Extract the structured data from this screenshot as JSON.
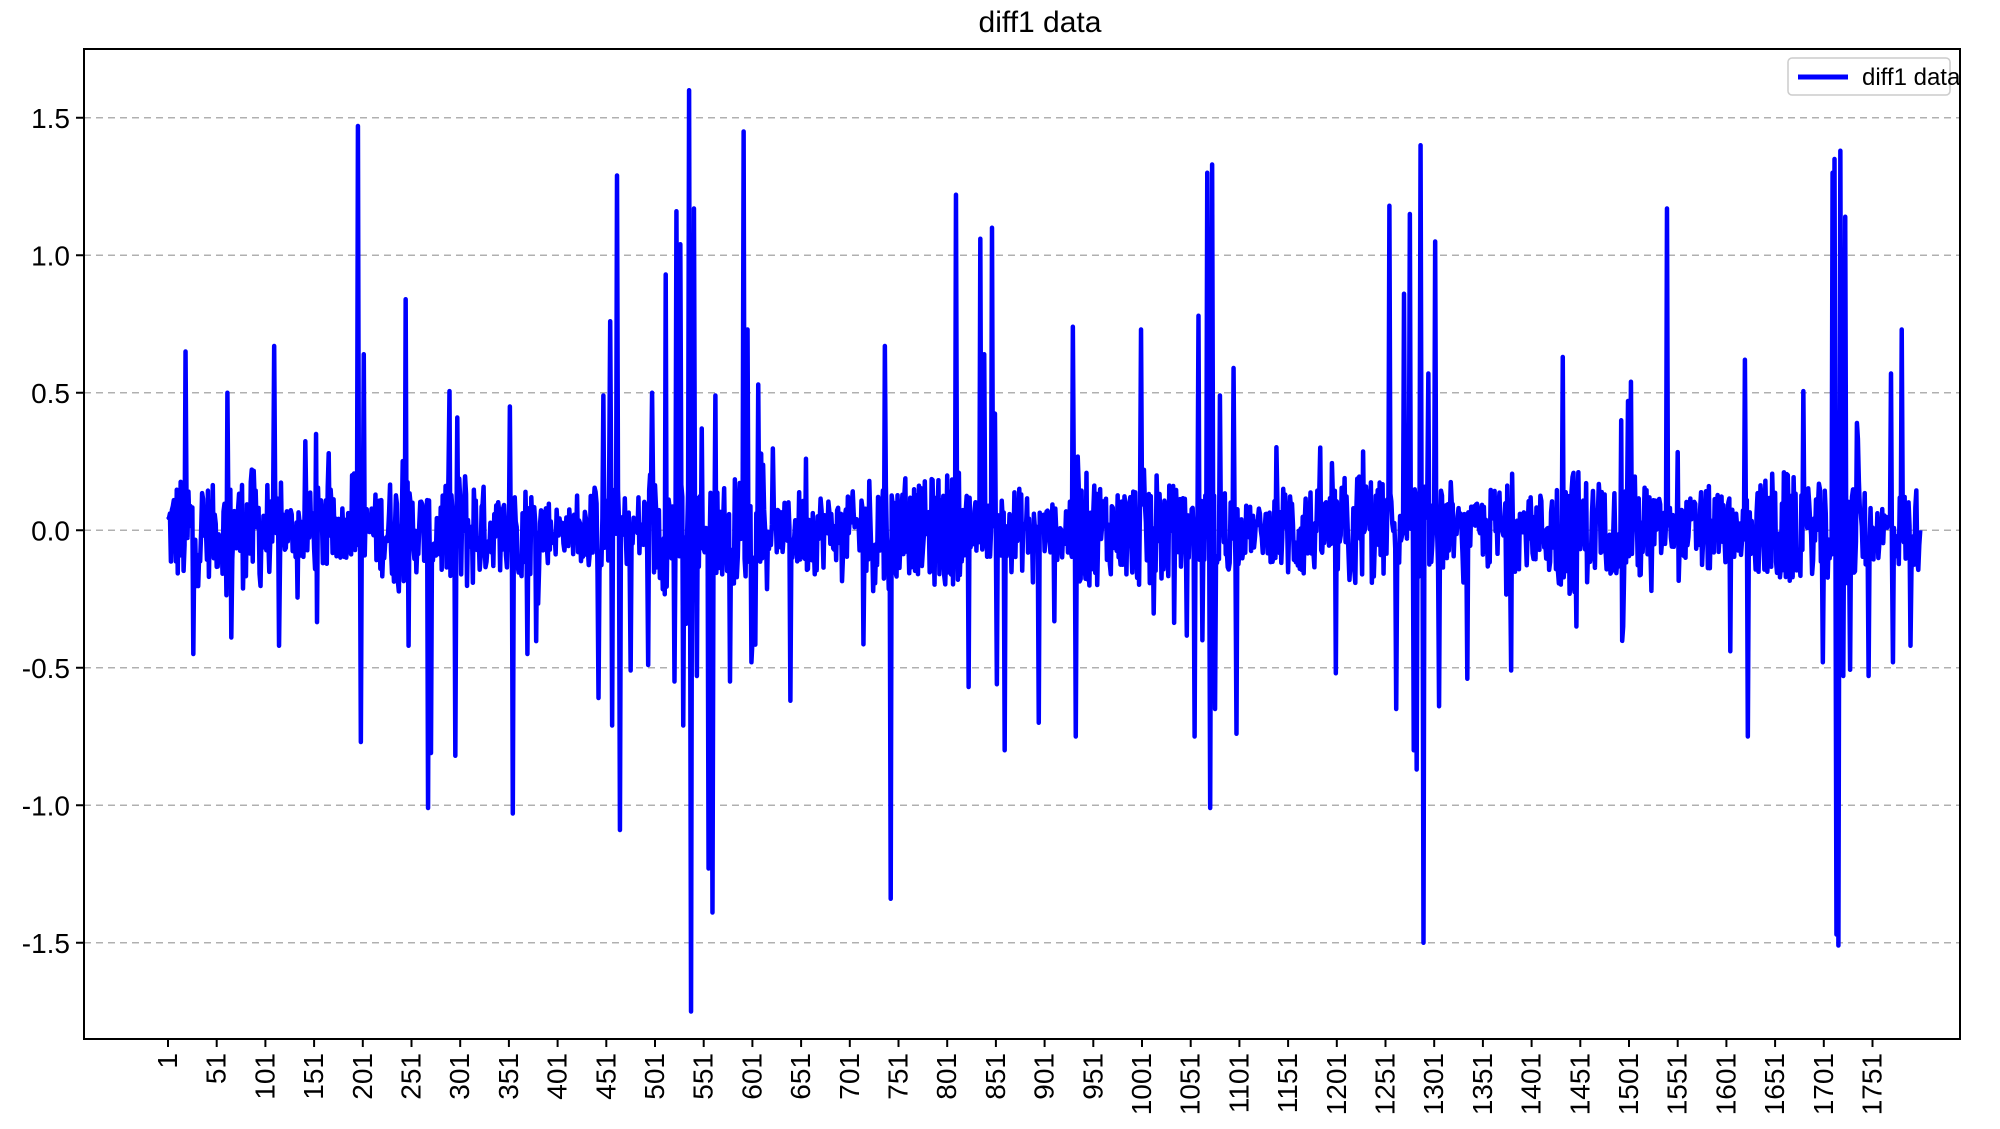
{
  "chart_data": {
    "type": "line",
    "title": "diff1 data",
    "xlabel": "",
    "ylabel": "",
    "xlim": [
      1,
      1800
    ],
    "ylim": [
      -1.85,
      1.75
    ],
    "y_ticks": [
      -1.5,
      -1.0,
      -0.5,
      0.0,
      0.5,
      1.0,
      1.5
    ],
    "y_tick_labels": [
      "-1.5",
      "-1.0",
      "-0.5",
      "0.0",
      "0.5",
      "1.0",
      "1.5"
    ],
    "x_ticks": [
      1,
      51,
      101,
      151,
      201,
      251,
      301,
      351,
      401,
      451,
      501,
      551,
      601,
      651,
      701,
      751,
      801,
      851,
      901,
      951,
      1001,
      1051,
      1101,
      1151,
      1201,
      1251,
      1301,
      1351,
      1401,
      1451,
      1501,
      1551,
      1601,
      1651,
      1701,
      1751
    ],
    "grid": "y-dashed",
    "legend": "top-right",
    "series": [
      {
        "name": "diff1 data",
        "color": "#0000ff",
        "points_count": 1800,
        "x_start": 1,
        "noise_amplitude": 0.16,
        "spikes": [
          [
            19,
            0.65
          ],
          [
            27,
            -0.45
          ],
          [
            62,
            0.5
          ],
          [
            66,
            -0.39
          ],
          [
            110,
            0.67
          ],
          [
            115,
            -0.42
          ],
          [
            153,
            0.35
          ],
          [
            190,
            0.2
          ],
          [
            196,
            1.47
          ],
          [
            199,
            -0.77
          ],
          [
            202,
            0.64
          ],
          [
            245,
            0.84
          ],
          [
            248,
            -0.42
          ],
          [
            268,
            -1.01
          ],
          [
            271,
            -0.81
          ],
          [
            296,
            -0.82
          ],
          [
            298,
            0.41
          ],
          [
            352,
            0.45
          ],
          [
            355,
            -1.03
          ],
          [
            370,
            -0.45
          ],
          [
            443,
            -0.61
          ],
          [
            448,
            0.49
          ],
          [
            455,
            0.76
          ],
          [
            457,
            -0.71
          ],
          [
            462,
            1.29
          ],
          [
            465,
            -1.09
          ],
          [
            476,
            -0.51
          ],
          [
            494,
            -0.49
          ],
          [
            498,
            0.5
          ],
          [
            512,
            0.93
          ],
          [
            521,
            -0.55
          ],
          [
            523,
            1.16
          ],
          [
            527,
            1.04
          ],
          [
            530,
            -0.71
          ],
          [
            533,
            -0.34
          ],
          [
            536,
            1.6
          ],
          [
            538,
            -1.75
          ],
          [
            541,
            1.17
          ],
          [
            544,
            -0.53
          ],
          [
            549,
            0.37
          ],
          [
            556,
            -1.23
          ],
          [
            560,
            -1.39
          ],
          [
            563,
            0.49
          ],
          [
            578,
            -0.55
          ],
          [
            592,
            1.45
          ],
          [
            596,
            0.73
          ],
          [
            600,
            -0.48
          ],
          [
            607,
            0.53
          ],
          [
            640,
            -0.62
          ],
          [
            656,
            0.26
          ],
          [
            737,
            0.67
          ],
          [
            743,
            -1.34
          ],
          [
            810,
            1.22
          ],
          [
            823,
            -0.57
          ],
          [
            835,
            1.06
          ],
          [
            839,
            0.64
          ],
          [
            847,
            1.1
          ],
          [
            852,
            -0.56
          ],
          [
            860,
            -0.8
          ],
          [
            895,
            -0.7
          ],
          [
            930,
            0.74
          ],
          [
            933,
            -0.75
          ],
          [
            1000,
            0.73
          ],
          [
            1055,
            -0.75
          ],
          [
            1059,
            0.78
          ],
          [
            1063,
            -0.4
          ],
          [
            1068,
            1.3
          ],
          [
            1071,
            -1.01
          ],
          [
            1073,
            1.33
          ],
          [
            1076,
            -0.65
          ],
          [
            1081,
            0.49
          ],
          [
            1095,
            0.59
          ],
          [
            1098,
            -0.74
          ],
          [
            1200,
            -0.52
          ],
          [
            1255,
            1.18
          ],
          [
            1262,
            -0.65
          ],
          [
            1270,
            0.86
          ],
          [
            1276,
            1.15
          ],
          [
            1280,
            -0.8
          ],
          [
            1283,
            -0.87
          ],
          [
            1287,
            1.4
          ],
          [
            1290,
            -1.5
          ],
          [
            1295,
            0.57
          ],
          [
            1302,
            1.05
          ],
          [
            1306,
            -0.64
          ],
          [
            1335,
            -0.54
          ],
          [
            1380,
            -0.51
          ],
          [
            1433,
            0.63
          ],
          [
            1447,
            -0.35
          ],
          [
            1495,
            -0.35
          ],
          [
            1500,
            0.47
          ],
          [
            1503,
            0.54
          ],
          [
            1540,
            1.17
          ],
          [
            1605,
            -0.44
          ],
          [
            1620,
            0.62
          ],
          [
            1623,
            -0.75
          ],
          [
            1700,
            -0.48
          ],
          [
            1710,
            1.3
          ],
          [
            1712,
            1.35
          ],
          [
            1714,
            -1.47
          ],
          [
            1716,
            -1.51
          ],
          [
            1718,
            1.38
          ],
          [
            1721,
            -0.53
          ],
          [
            1723,
            1.14
          ],
          [
            1735,
            0.39
          ],
          [
            1747,
            -0.53
          ],
          [
            1770,
            0.57
          ],
          [
            1772,
            -0.48
          ],
          [
            1781,
            0.73
          ],
          [
            1790,
            -0.42
          ],
          [
            1800,
            0.0
          ]
        ]
      }
    ]
  }
}
